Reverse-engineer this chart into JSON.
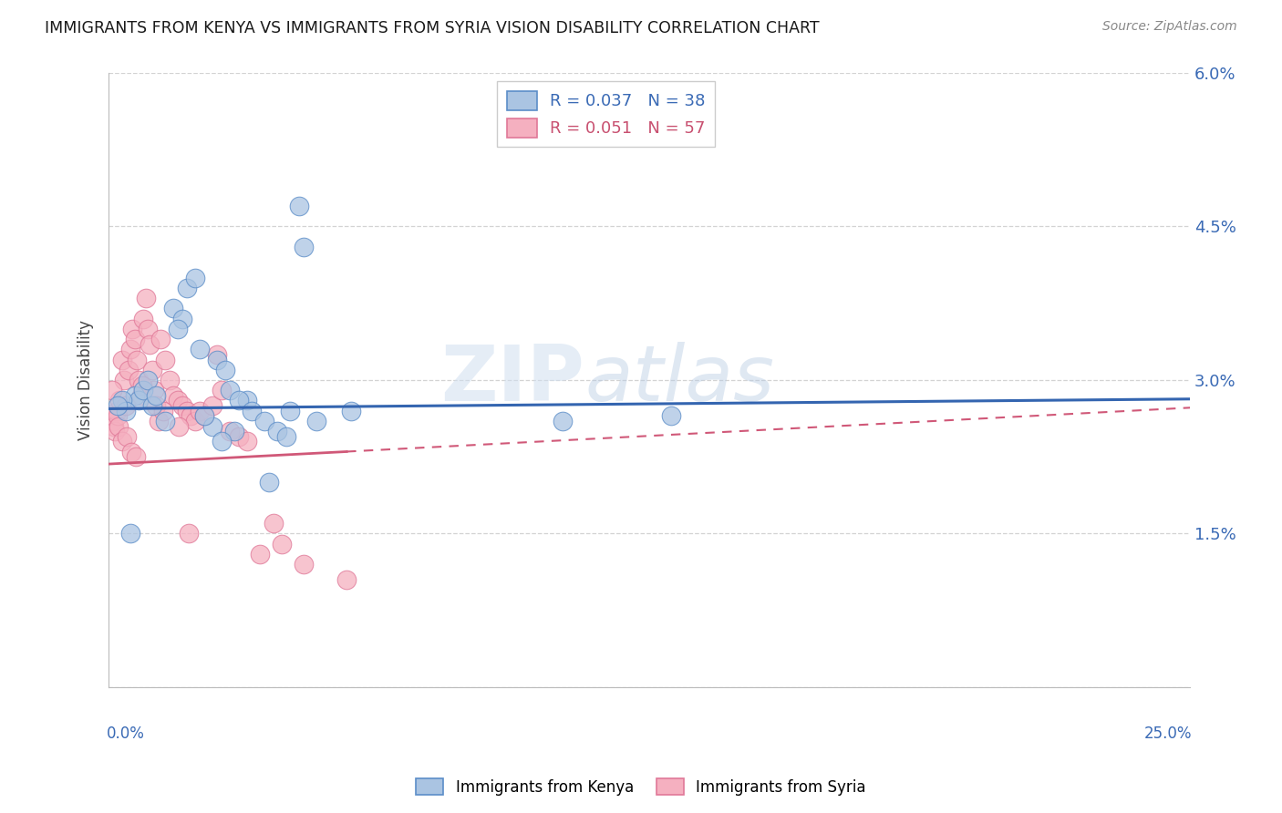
{
  "title": "IMMIGRANTS FROM KENYA VS IMMIGRANTS FROM SYRIA VISION DISABILITY CORRELATION CHART",
  "source": "Source: ZipAtlas.com",
  "ylabel": "Vision Disability",
  "xmin": 0.0,
  "xmax": 25.0,
  "ymin": 0.0,
  "ymax": 6.0,
  "yticks": [
    0.0,
    1.5,
    3.0,
    4.5,
    6.0
  ],
  "ytick_labels": [
    "",
    "1.5%",
    "3.0%",
    "4.5%",
    "6.0%"
  ],
  "kenya_R": "0.037",
  "kenya_N": "38",
  "syria_R": "0.051",
  "syria_N": "57",
  "kenya_color": "#aac4e2",
  "kenya_edge_color": "#5b8dc8",
  "kenya_line_color": "#3465b0",
  "syria_color": "#f5b0c0",
  "syria_edge_color": "#e07898",
  "syria_line_color": "#d05878",
  "legend_kenya": "Immigrants from Kenya",
  "legend_syria": "Immigrants from Syria",
  "watermark_zip": "ZIP",
  "watermark_atlas": "atlas",
  "background_color": "#ffffff",
  "grid_color": "#c8c8c8",
  "kenya_slope": 0.0038,
  "kenya_intercept": 2.72,
  "syria_slope": 0.022,
  "syria_intercept": 2.18,
  "syria_solid_end": 5.5,
  "kenya_x": [
    3.2,
    4.2,
    4.4,
    4.5,
    1.5,
    1.7,
    1.8,
    2.0,
    2.1,
    2.5,
    2.7,
    2.8,
    3.0,
    3.3,
    3.6,
    3.9,
    0.6,
    0.7,
    0.8,
    0.9,
    1.0,
    1.1,
    0.3,
    0.4,
    4.8,
    5.6,
    10.5,
    13.0,
    2.4,
    2.9,
    1.6,
    2.2,
    0.5,
    4.1,
    1.3,
    2.6,
    0.2,
    3.7
  ],
  "kenya_y": [
    2.8,
    2.7,
    4.7,
    4.3,
    3.7,
    3.6,
    3.9,
    4.0,
    3.3,
    3.2,
    3.1,
    2.9,
    2.8,
    2.7,
    2.6,
    2.5,
    2.85,
    2.8,
    2.9,
    3.0,
    2.75,
    2.85,
    2.8,
    2.7,
    2.6,
    2.7,
    2.6,
    2.65,
    2.55,
    2.5,
    3.5,
    2.65,
    1.5,
    2.45,
    2.6,
    2.4,
    2.75,
    2.0
  ],
  "syria_x": [
    0.05,
    0.1,
    0.12,
    0.15,
    0.18,
    0.2,
    0.25,
    0.3,
    0.35,
    0.4,
    0.45,
    0.5,
    0.55,
    0.6,
    0.65,
    0.7,
    0.75,
    0.8,
    0.85,
    0.9,
    0.95,
    1.0,
    1.05,
    1.1,
    1.15,
    1.2,
    1.3,
    1.4,
    1.5,
    1.6,
    1.7,
    1.8,
    1.9,
    2.0,
    2.1,
    2.2,
    2.4,
    2.5,
    2.6,
    2.8,
    3.0,
    3.2,
    3.5,
    4.0,
    4.5,
    5.5,
    0.08,
    0.22,
    0.32,
    0.42,
    0.52,
    1.25,
    0.78,
    1.62,
    3.8,
    0.62,
    1.85
  ],
  "syria_y": [
    2.65,
    2.6,
    2.55,
    2.5,
    2.7,
    2.65,
    2.8,
    3.2,
    3.0,
    2.75,
    3.1,
    3.3,
    3.5,
    3.4,
    3.2,
    3.0,
    2.85,
    3.6,
    3.8,
    3.5,
    3.35,
    3.1,
    2.9,
    2.75,
    2.6,
    3.4,
    3.2,
    3.0,
    2.85,
    2.8,
    2.75,
    2.7,
    2.65,
    2.6,
    2.7,
    2.65,
    2.75,
    3.25,
    2.9,
    2.5,
    2.45,
    2.4,
    1.3,
    1.4,
    1.2,
    1.05,
    2.9,
    2.55,
    2.4,
    2.45,
    2.3,
    2.7,
    2.95,
    2.55,
    1.6,
    2.25,
    1.5
  ]
}
